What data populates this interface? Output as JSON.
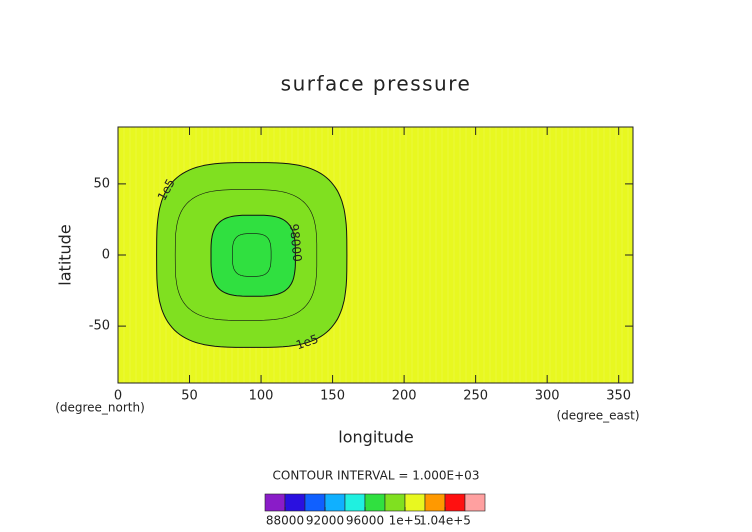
{
  "chart_data": {
    "type": "contour",
    "title": "surface pressure",
    "x_label": "longitude",
    "y_label": "latitude",
    "x_unit": "(degree_east)",
    "y_unit": "(degree_north)",
    "xlim": [
      0,
      360
    ],
    "xticks": [
      0,
      50,
      100,
      150,
      200,
      250,
      300,
      350
    ],
    "ylim": [
      -90,
      90
    ],
    "yticks": [
      -50,
      0,
      50
    ],
    "contour_interval": "CONTOUR INTERVAL = 1.000E+03",
    "contours": [
      {
        "level": 100000,
        "label": "1e5",
        "lon_range": [
          27,
          160
        ],
        "lat_range": [
          -65,
          65
        ]
      },
      {
        "level": 99000,
        "lon_range": [
          40,
          139
        ],
        "lat_range": [
          -46,
          46
        ]
      },
      {
        "level": 98000,
        "label": "98000",
        "lon_range": [
          65,
          124
        ],
        "lat_range": [
          -29,
          28
        ]
      },
      {
        "level": 97000,
        "lon_range": [
          80,
          107
        ],
        "lat_range": [
          -15,
          15
        ]
      }
    ],
    "colorbar": {
      "levels": [
        86000,
        88000,
        90000,
        92000,
        94000,
        96000,
        98000,
        100000,
        102000,
        104000,
        106000,
        108000
      ],
      "colors": [
        "#8a1cc8",
        "#2a10e0",
        "#1060ff",
        "#10b0ff",
        "#20f0e0",
        "#30e040",
        "#80e020",
        "#e8f820",
        "#ff9900",
        "#ff1010",
        "#ffa0a0"
      ],
      "ticks": [
        88000,
        92000,
        96000,
        {
          "value": 100000,
          "label": "1e+5"
        },
        {
          "value": 104000,
          "label": "1.04e+5"
        }
      ]
    }
  }
}
